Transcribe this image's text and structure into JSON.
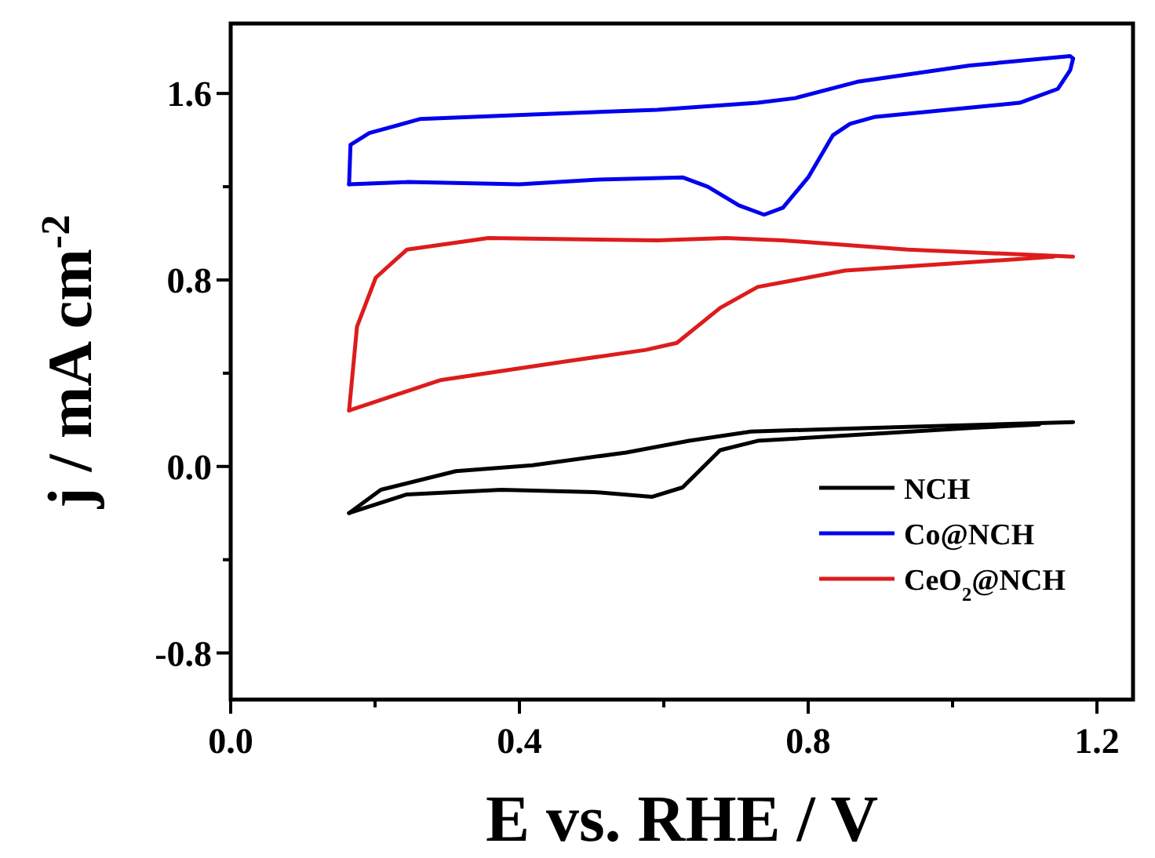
{
  "chart_data": {
    "type": "line",
    "xlabel": "E vs. RHE / V",
    "ylabel": "j / mA cm$^{-2}$",
    "xlim": [
      0,
      1.25
    ],
    "ylim": [
      -1.0,
      1.9
    ],
    "xticks": [
      {
        "value": 0,
        "label": "0.0"
      },
      {
        "value": 0.2,
        "label": null
      },
      {
        "value": 0.4,
        "label": "0.4"
      },
      {
        "value": 0.6,
        "label": null
      },
      {
        "value": 0.8,
        "label": "0.8"
      },
      {
        "value": 1.0,
        "label": null
      },
      {
        "value": 1.2,
        "label": "1.2"
      }
    ],
    "yticks": [
      {
        "value": -0.8,
        "label": "-0.8"
      },
      {
        "value": -0.4,
        "label": null
      },
      {
        "value": 0,
        "label": "0.0"
      },
      {
        "value": 0.4,
        "label": null
      },
      {
        "value": 0.8,
        "label": "0.8"
      },
      {
        "value": 1.2,
        "label": null
      },
      {
        "value": 1.6,
        "label": "1.6"
      }
    ],
    "legend": "bottom right",
    "grid": false,
    "marker": "none",
    "line_style": "solid",
    "series": [
      {
        "name": "NCH",
        "color": "#000000",
        "x": [
          0.164,
          0.208,
          0.312,
          0.418,
          0.548,
          0.635,
          0.721,
          0.938,
          1.167
        ],
        "values": [
          -0.2,
          -0.1,
          -0.02,
          0.005,
          0.06,
          0.11,
          0.15,
          0.17,
          0.19
        ]
      },
      {
        "color": "#000000",
        "x": [
          0.164,
          0.244,
          0.375,
          0.504,
          0.584,
          0.626,
          0.678,
          0.73,
          1.024,
          1.12
        ],
        "values": [
          -0.2,
          -0.12,
          -0.1,
          -0.11,
          -0.13,
          -0.09,
          0.07,
          0.11,
          0.165,
          0.18
        ]
      },
      {
        "name": "Co@NCH",
        "color": "#0000ee",
        "x": [
          0.164,
          0.166,
          0.192,
          0.262,
          0.418,
          0.591,
          0.73,
          0.782,
          0.868,
          1.024,
          1.163,
          1.167
        ],
        "values": [
          1.21,
          1.38,
          1.43,
          1.49,
          1.51,
          1.53,
          1.56,
          1.58,
          1.65,
          1.72,
          1.76,
          1.75
        ]
      },
      {
        "color": "#0000ee",
        "x": [
          0.164,
          0.244,
          0.4,
          0.504,
          0.626,
          0.661,
          0.704,
          0.739,
          0.765,
          0.8,
          0.834,
          0.858,
          0.893,
          1.093,
          1.146,
          1.163,
          1.167
        ],
        "values": [
          1.21,
          1.22,
          1.21,
          1.23,
          1.24,
          1.2,
          1.12,
          1.08,
          1.11,
          1.24,
          1.42,
          1.47,
          1.5,
          1.56,
          1.62,
          1.7,
          1.75
        ]
      },
      {
        "name": "CeO$_{2}$@NCH",
        "color": "#dd1c1c",
        "x": [
          0.164,
          0.175,
          0.201,
          0.244,
          0.357,
          0.591,
          0.686,
          0.765,
          0.938,
          1.167
        ],
        "values": [
          0.24,
          0.6,
          0.81,
          0.93,
          0.98,
          0.97,
          0.98,
          0.97,
          0.93,
          0.9
        ]
      },
      {
        "color": "#dd1c1c",
        "x": [
          0.164,
          0.29,
          0.463,
          0.575,
          0.618,
          0.678,
          0.73,
          0.851,
          1.093,
          1.14
        ],
        "values": [
          0.24,
          0.37,
          0.45,
          0.5,
          0.53,
          0.68,
          0.77,
          0.84,
          0.89,
          0.9
        ]
      }
    ]
  }
}
